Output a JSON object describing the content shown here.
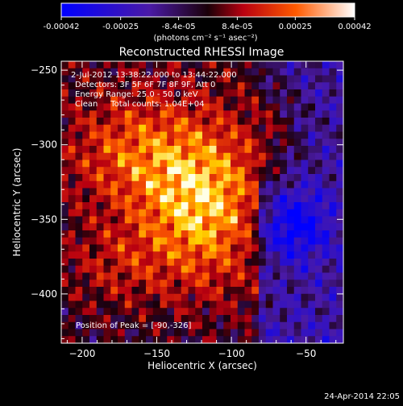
{
  "chart_data": {
    "type": "heatmap",
    "title": "Reconstructed RHESSI Image",
    "xlabel": "Heliocentric X (arcsec)",
    "ylabel": "Heliocentric Y (arcsec)",
    "x_ticks": [
      "-200",
      "-150",
      "-100",
      "-50"
    ],
    "y_ticks": [
      "-250",
      "-300",
      "-350",
      "-400"
    ],
    "xlim": [
      -214,
      -25
    ],
    "ylim": [
      -433,
      -244
    ],
    "colorbar": {
      "range": [
        -0.00042,
        0.00042
      ],
      "tick_labels": [
        "-0.00042",
        "-0.00025",
        "-8.4e-05",
        "8.4e-05",
        "0.00025",
        "0.00042"
      ],
      "unit_label": "(photons cm⁻² s⁻¹ asec⁻²)"
    },
    "annotations": [
      "2-Jul-2012 13:38:22.000 to 13:44:22.000",
      "Detectors: 3F 5F 6F 7F 8F 9F, Att 0",
      "Energy Range: 25.0 - 50.0 keV",
      "Clean     Total counts: 1.04E+04"
    ],
    "peak_label": "Position of Peak = [-90,-326]",
    "peak": [
      -90,
      -326
    ],
    "colormap": "hot-cold",
    "grid": false
  },
  "footer": {
    "timestamp": "24-Apr-2014 22:05"
  }
}
